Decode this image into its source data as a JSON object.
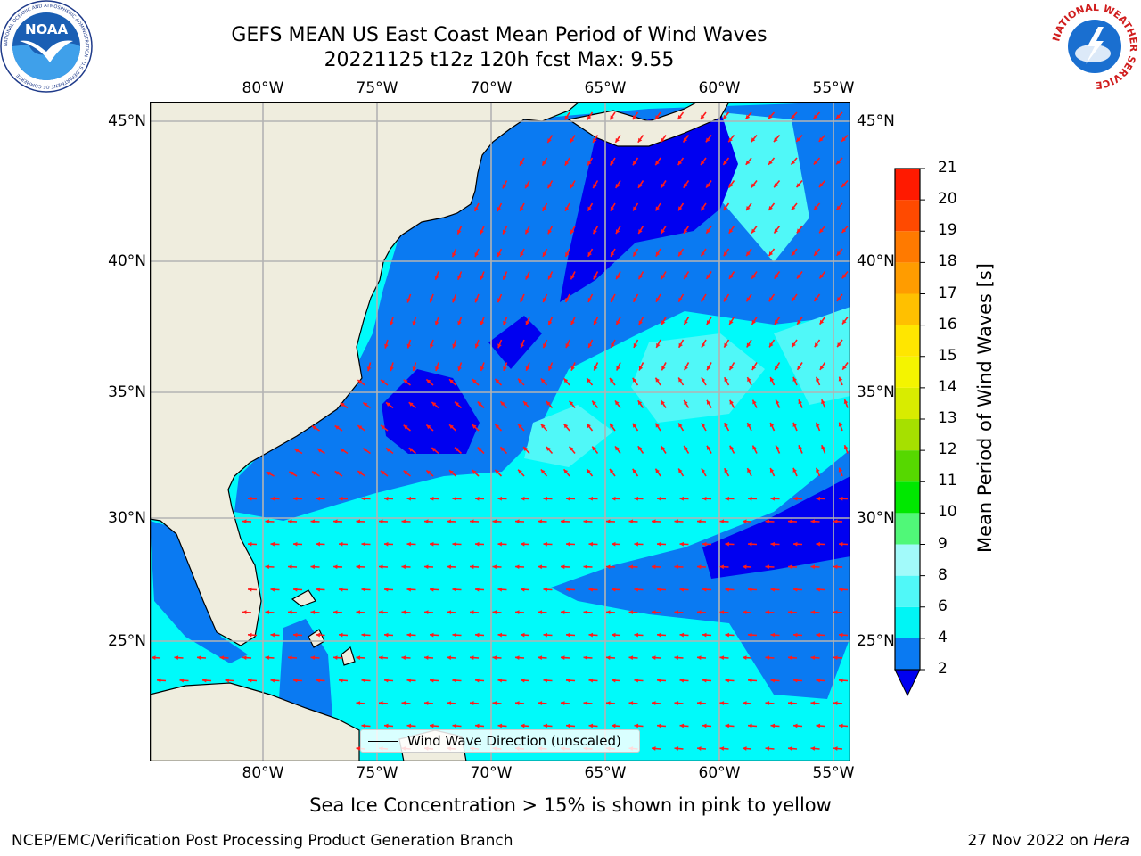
{
  "title": {
    "line1": "GEFS MEAN US East Coast Mean Period of Wind Waves",
    "line2": "20221125 t12z 120h fcst   Max: 9.55"
  },
  "map": {
    "lon_labels": [
      "80°W",
      "75°W",
      "70°W",
      "65°W",
      "60°W",
      "55°W"
    ],
    "lat_labels": [
      "45°N",
      "40°N",
      "35°N",
      "30°N",
      "25°N"
    ],
    "legend_label": "Wind Wave Direction (unscaled)",
    "colors": {
      "land": "#efedde",
      "band_2_4": "#0a7af2",
      "band_under_2": "#0000f0",
      "band_4_6": "#00fafa",
      "band_6_8": "#50f8f8",
      "arrow": "#ff1a1a",
      "grid": "#b3b3b3"
    }
  },
  "colorbar": {
    "title": "Mean Period of Wind Waves [s]",
    "ticks": [
      "2",
      "4",
      "6",
      "8",
      "9",
      "10",
      "11",
      "12",
      "13",
      "14",
      "15",
      "16",
      "17",
      "18",
      "19",
      "20",
      "21"
    ],
    "colors": [
      "#0a7af2",
      "#00f5f5",
      "#50f8f8",
      "#a2fafa",
      "#50f878",
      "#00e800",
      "#56d800",
      "#a6e000",
      "#d8ec00",
      "#f4f400",
      "#ffe600",
      "#ffc000",
      "#ff9c00",
      "#ff7a00",
      "#ff4a00",
      "#ff1a00"
    ],
    "under_color": "#0000f0"
  },
  "caption": "Sea Ice Concentration > 15% is shown in pink to yellow",
  "footer": {
    "left": "NCEP/EMC/Verification Post Processing Product Generation Branch",
    "right_date": "27 Nov 2022 on ",
    "right_host": "Hera"
  },
  "logos": {
    "noaa_text": "NOAA",
    "noaa_ring": "NATIONAL OCEANIC AND ATMOSPHERIC ADMINISTRATION · U.S. DEPARTMENT OF COMMERCE",
    "nws_ring": "NATIONAL WEATHER SERVICE"
  }
}
